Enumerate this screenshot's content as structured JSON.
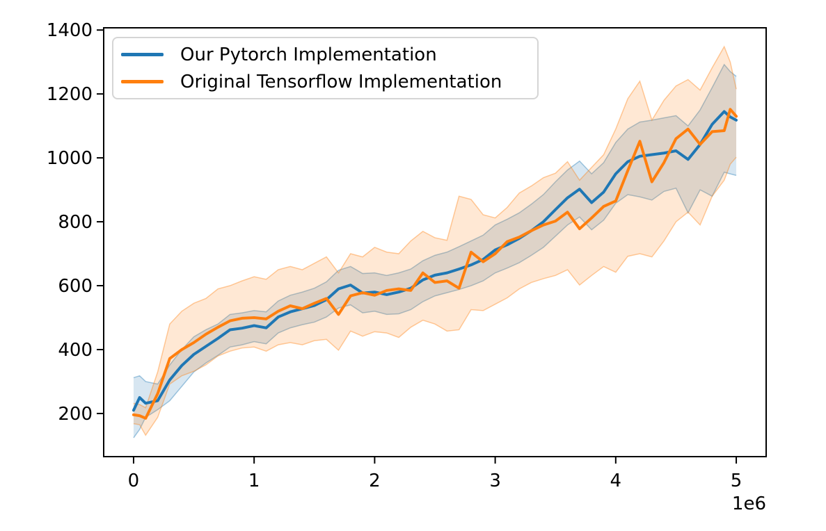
{
  "figure": {
    "background_color": "#ffffff",
    "axes_edge_color": "#000000"
  },
  "chart_data": {
    "type": "line",
    "title": "",
    "xlabel": "",
    "ylabel": "",
    "grid": false,
    "legend_position": "upper left",
    "x_offset_label": "1e6",
    "x_multiplier": 1000000,
    "xlim": [
      -0.248,
      5.248
    ],
    "ylim": [
      65,
      1407
    ],
    "x_ticks": {
      "values": [
        0,
        1,
        2,
        3,
        4,
        5
      ],
      "labels": [
        "0",
        "1",
        "2",
        "3",
        "4",
        "5"
      ]
    },
    "y_ticks": {
      "values": [
        200,
        400,
        600,
        800,
        1000,
        1200,
        1400
      ],
      "labels": [
        "200",
        "400",
        "600",
        "800",
        "1000",
        "1200",
        "1400"
      ]
    },
    "x": [
      0,
      0.05,
      0.1,
      0.2,
      0.3,
      0.4,
      0.5,
      0.6,
      0.7,
      0.8,
      0.9,
      1.0,
      1.1,
      1.2,
      1.3,
      1.4,
      1.5,
      1.6,
      1.7,
      1.8,
      1.9,
      2.0,
      2.1,
      2.2,
      2.3,
      2.4,
      2.5,
      2.6,
      2.7,
      2.8,
      2.9,
      3.0,
      3.1,
      3.2,
      3.3,
      3.4,
      3.5,
      3.6,
      3.7,
      3.8,
      3.9,
      4.0,
      4.1,
      4.2,
      4.3,
      4.4,
      4.5,
      4.6,
      4.7,
      4.8,
      4.9,
      4.95,
      5.0
    ],
    "series": [
      {
        "name": "Our Pytorch Implementation",
        "color": "#1f77b4",
        "band_fill_opacity": 0.18,
        "band_edge_opacity": 0.4,
        "values": [
          210,
          250,
          232,
          240,
          305,
          350,
          385,
          410,
          435,
          462,
          467,
          475,
          468,
          502,
          518,
          528,
          538,
          556,
          590,
          602,
          577,
          580,
          572,
          580,
          592,
          618,
          633,
          640,
          652,
          665,
          682,
          712,
          728,
          748,
          772,
          800,
          838,
          875,
          902,
          860,
          893,
          950,
          988,
          1005,
          1010,
          1015,
          1022,
          995,
          1042,
          1105,
          1145,
          1128,
          1118
        ],
        "band_upper": [
          312,
          318,
          300,
          292,
          352,
          400,
          440,
          462,
          480,
          510,
          515,
          522,
          518,
          552,
          570,
          580,
          592,
          612,
          648,
          660,
          638,
          640,
          632,
          640,
          652,
          678,
          695,
          705,
          722,
          740,
          758,
          790,
          808,
          828,
          855,
          885,
          925,
          962,
          990,
          950,
          985,
          1048,
          1090,
          1112,
          1118,
          1125,
          1132,
          1100,
          1150,
          1220,
          1292,
          1270,
          1255
        ],
        "band_lower": [
          124,
          150,
          188,
          212,
          240,
          285,
          330,
          358,
          382,
          408,
          415,
          425,
          418,
          452,
          468,
          478,
          486,
          502,
          530,
          540,
          515,
          520,
          510,
          512,
          525,
          550,
          568,
          578,
          588,
          600,
          615,
          640,
          655,
          672,
          695,
          720,
          755,
          790,
          815,
          775,
          805,
          858,
          885,
          878,
          868,
          895,
          905,
          828,
          900,
          880,
          955,
          950,
          945
        ]
      },
      {
        "name": "Original Tensorflow Implementation",
        "color": "#ff7f0e",
        "band_fill_opacity": 0.18,
        "band_edge_opacity": 0.4,
        "values": [
          196,
          193,
          185,
          262,
          372,
          400,
          422,
          448,
          470,
          490,
          498,
          500,
          496,
          520,
          537,
          528,
          545,
          560,
          510,
          568,
          578,
          570,
          585,
          590,
          585,
          640,
          610,
          615,
          592,
          705,
          675,
          700,
          738,
          752,
          772,
          790,
          802,
          830,
          778,
          812,
          848,
          865,
          960,
          1052,
          925,
          985,
          1060,
          1090,
          1042,
          1082,
          1085,
          1152,
          1130
        ],
        "band_upper": [
          232,
          228,
          218,
          330,
          480,
          520,
          545,
          560,
          590,
          600,
          615,
          628,
          620,
          650,
          660,
          650,
          670,
          690,
          640,
          700,
          690,
          720,
          705,
          700,
          740,
          770,
          750,
          742,
          880,
          870,
          822,
          812,
          845,
          890,
          912,
          938,
          952,
          988,
          930,
          970,
          1010,
          1090,
          1185,
          1240,
          1118,
          1180,
          1225,
          1245,
          1212,
          1282,
          1348,
          1300,
          1215
        ],
        "band_lower": [
          168,
          165,
          132,
          188,
          292,
          318,
          332,
          352,
          380,
          395,
          405,
          408,
          395,
          415,
          422,
          415,
          428,
          432,
          398,
          458,
          442,
          456,
          452,
          438,
          470,
          492,
          480,
          458,
          462,
          525,
          522,
          542,
          562,
          590,
          610,
          622,
          632,
          650,
          602,
          632,
          660,
          642,
          692,
          700,
          690,
          740,
          800,
          830,
          790,
          880,
          930,
          980,
          1002
        ]
      }
    ]
  }
}
